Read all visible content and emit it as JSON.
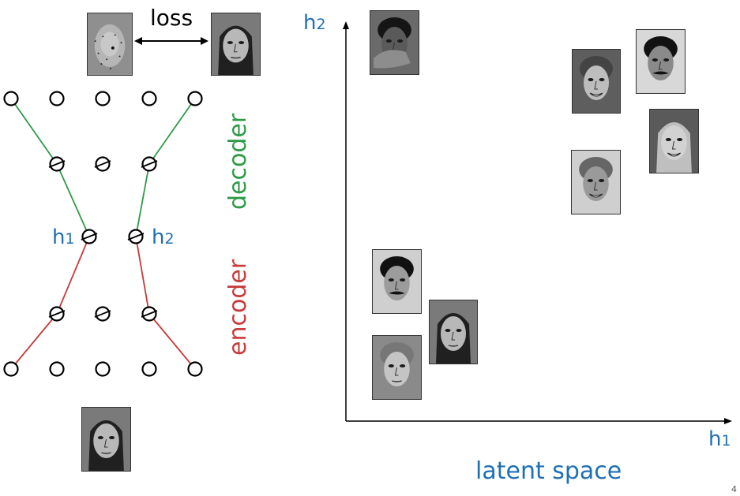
{
  "diagram": {
    "loss_label": "loss",
    "decoder_label": "decoder",
    "encoder_label": "encoder",
    "h1_label": "h",
    "h1_sub": "1",
    "h2_label": "h",
    "h2_sub": "2",
    "colors": {
      "decoder": "#2e9a47",
      "encoder": "#c93a3a",
      "latent": "#1f6fb5",
      "node": "#000000"
    }
  },
  "plot": {
    "y_axis_label": "h",
    "y_axis_sub": "2",
    "x_axis_label": "h",
    "x_axis_sub": "1",
    "caption": "latent space"
  },
  "page_number": "4"
}
